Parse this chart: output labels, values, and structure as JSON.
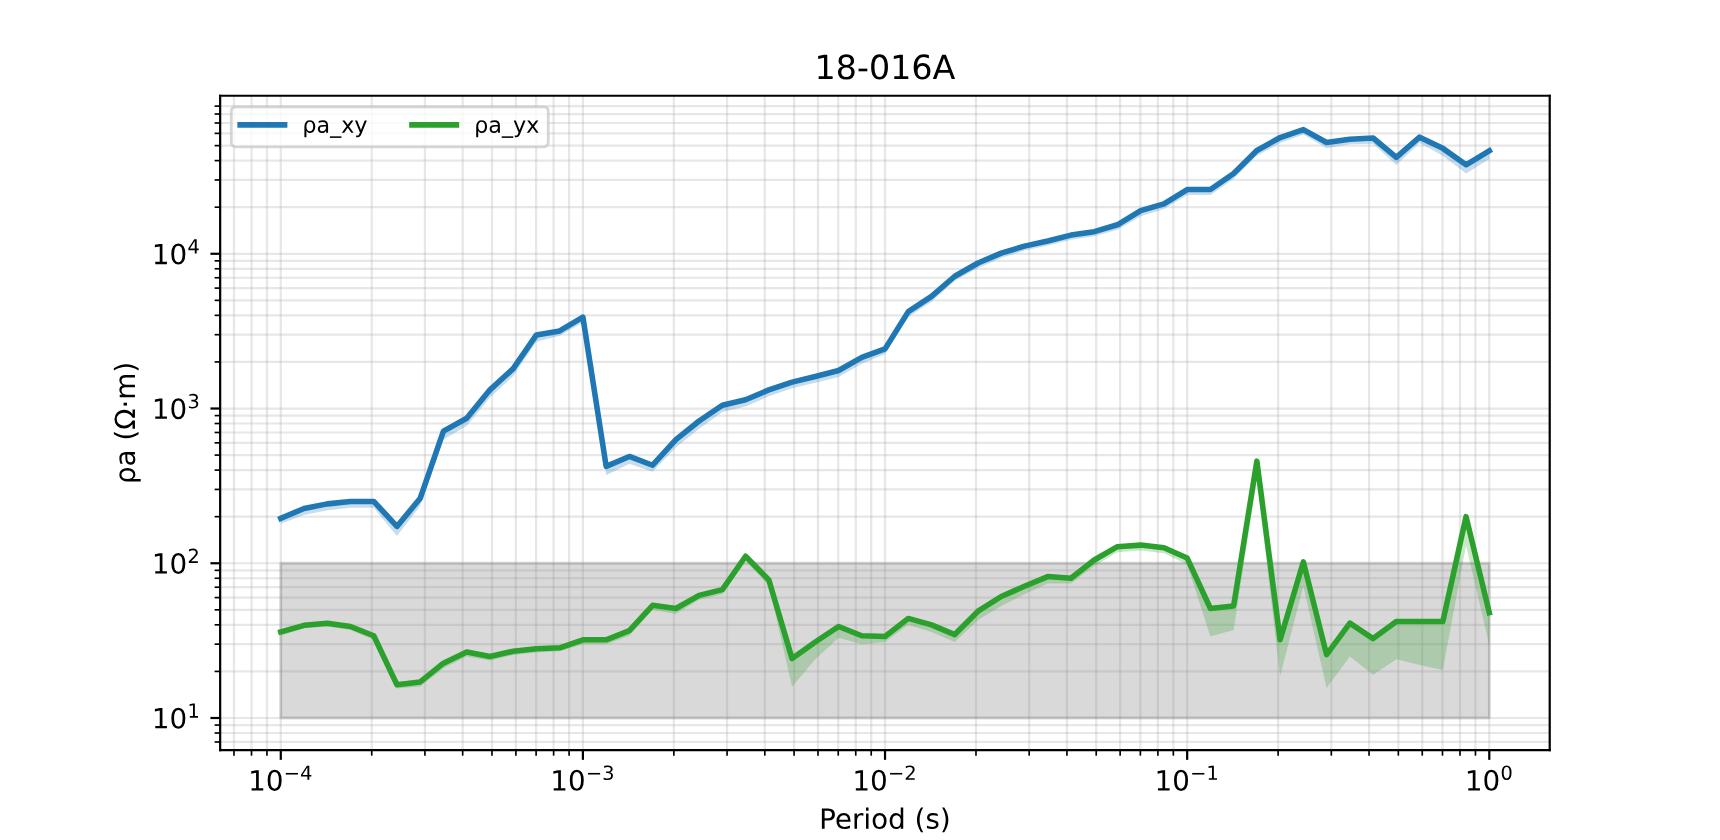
{
  "chart_data": {
    "type": "line",
    "title": "18-016A",
    "xlabel": "Period (s)",
    "ylabel": "ρa (Ω·m)",
    "log": "xy",
    "grid": true,
    "legend": "top left",
    "line_style": "solid",
    "marker": "none",
    "x": [
      0.0001,
      0.0001194,
      0.0001425,
      0.0001701,
      0.0002031,
      0.0002424,
      0.0002894,
      0.0003455,
      0.0004125,
      0.0004924,
      0.0005878,
      0.0007017,
      0.0008377,
      0.001,
      0.001194,
      0.001425,
      0.001701,
      0.002031,
      0.002424,
      0.002894,
      0.003455,
      0.004125,
      0.004924,
      0.005878,
      0.007017,
      0.008377,
      0.01,
      0.01194,
      0.01425,
      0.01701,
      0.02031,
      0.02424,
      0.02894,
      0.03455,
      0.04125,
      0.04924,
      0.05878,
      0.07017,
      0.08377,
      0.1,
      0.1194,
      0.1425,
      0.1701,
      0.2031,
      0.2424,
      0.2894,
      0.3455,
      0.4125,
      0.4924,
      0.5878,
      0.7017,
      0.8377,
      1
    ],
    "series": [
      {
        "name": "ρa_xy",
        "color": "#1f77b4",
        "values": [
          195,
          226,
          242,
          251,
          251,
          173,
          263,
          714,
          865,
          1320,
          1810,
          2990,
          3170,
          3890,
          423,
          490,
          430,
          630,
          830,
          1050,
          1140,
          1320,
          1480,
          1610,
          1760,
          2140,
          2430,
          4230,
          5310,
          7160,
          8720,
          10100,
          11200,
          12100,
          13200,
          13900,
          15400,
          19000,
          21000,
          26000,
          26000,
          33000,
          46500,
          56400,
          63500,
          52400,
          55000,
          56000,
          42000,
          56700,
          48000,
          37600,
          46300
        ],
        "lower": [
          180,
          205,
          220,
          228,
          228,
          150,
          235,
          630,
          770,
          1180,
          1620,
          2700,
          2950,
          3600,
          370,
          440,
          390,
          560,
          740,
          950,
          1030,
          1200,
          1350,
          1470,
          1600,
          1950,
          2250,
          3900,
          4900,
          6700,
          8100,
          9400,
          10500,
          11300,
          12300,
          13000,
          14300,
          17500,
          19500,
          24000,
          24000,
          30500,
          43000,
          52000,
          59000,
          48000,
          51000,
          51500,
          37500,
          52000,
          43000,
          33000,
          41000
        ],
        "upper": [
          200,
          232,
          248,
          258,
          258,
          178,
          270,
          735,
          890,
          1360,
          1860,
          3080,
          3260,
          4000,
          435,
          505,
          443,
          648,
          855,
          1080,
          1170,
          1360,
          1520,
          1650,
          1810,
          2200,
          2500,
          4350,
          5460,
          7360,
          8970,
          10400,
          11500,
          12400,
          13600,
          14300,
          15800,
          19500,
          21600,
          26700,
          26700,
          33900,
          47800,
          58000,
          65300,
          53900,
          56600,
          57600,
          43200,
          58300,
          49400,
          38700,
          47600
        ]
      },
      {
        "name": "ρa_yx",
        "color": "#2ca02c",
        "values": [
          36,
          39.7,
          40.9,
          39,
          34,
          16.4,
          17.1,
          22.6,
          26.7,
          25,
          27,
          28,
          28.4,
          32,
          32,
          36.7,
          53.5,
          51,
          62,
          67.5,
          111,
          78,
          24.2,
          31,
          39,
          34,
          33.6,
          44,
          40,
          34.6,
          49,
          61,
          71,
          82,
          80,
          105,
          128,
          131,
          126,
          108,
          51,
          53,
          457,
          32,
          102,
          25.7,
          41,
          32.6,
          42,
          42,
          42,
          200,
          48
        ],
        "lower": [
          34,
          38,
          39,
          37,
          32,
          15.5,
          16,
          21,
          25,
          23.5,
          25.5,
          26.5,
          27,
          30,
          30,
          34,
          50,
          47,
          58,
          63,
          103,
          72,
          15.9,
          24,
          33,
          30,
          31,
          40,
          36,
          31,
          43,
          53,
          63,
          74,
          74,
          96,
          118,
          121,
          116,
          98,
          33.6,
          37,
          350,
          18.7,
          71,
          15.6,
          25,
          19,
          24,
          22,
          20.4,
          130,
          29.5
        ],
        "upper": [
          37,
          41,
          42,
          40,
          35,
          17,
          17.7,
          23.4,
          27.6,
          26,
          28,
          29,
          29.4,
          33,
          33,
          38,
          55,
          53,
          64,
          70,
          115,
          81,
          25,
          32,
          40,
          35,
          35,
          45.5,
          41.5,
          36,
          50.5,
          63,
          73,
          85,
          83,
          108,
          132,
          135,
          130,
          112,
          53,
          55,
          470,
          33,
          105,
          26.5,
          42.5,
          34,
          43.5,
          43.5,
          43.5,
          206,
          50
        ]
      }
    ],
    "bands": [
      {
        "axis": "y",
        "from": 10,
        "to": 100,
        "color": "#808080"
      }
    ],
    "xlim": [
      6.3e-05,
      1.585
    ],
    "ylim": [
      6.2,
      105000
    ],
    "xticks": [
      {
        "value": 0.0001,
        "label": "10$^{−4}$"
      },
      {
        "value": 0.001,
        "label": "10$^{−3}$"
      },
      {
        "value": 0.01,
        "label": "10$^{−2}$"
      },
      {
        "value": 0.1,
        "label": "10$^{−1}$"
      },
      {
        "value": 1,
        "label": "10$^{0}$"
      }
    ],
    "yticks": [
      {
        "value": 10,
        "label": "10$^{1}$"
      },
      {
        "value": 100,
        "label": "10$^{2}$"
      },
      {
        "value": 1000,
        "label": "10$^{3}$"
      },
      {
        "value": 10000,
        "label": "10$^{4}$"
      }
    ]
  }
}
